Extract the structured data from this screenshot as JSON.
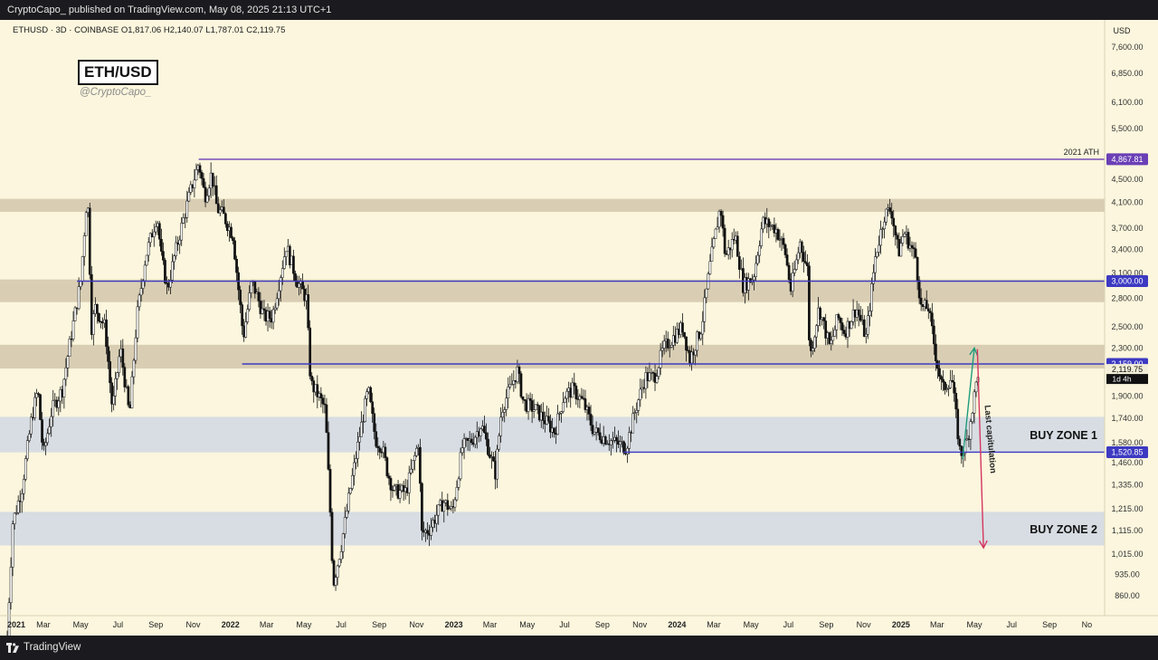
{
  "header": {
    "publisher_text": "CryptoCapo_ published on TradingView.com, May 08, 2025 21:13 UTC+1"
  },
  "footer": {
    "brand": "TradingView"
  },
  "chart_title": {
    "symbol_line": "ETHUSD · 3D · COINBASE  O1,817.06  H2,140.07  L1,787.01  C2,119.75",
    "box_label": "ETH/USD",
    "handle": "@CryptoCapo_"
  },
  "colors": {
    "background": "#fbf6dd",
    "resistance_band": "#d2c7ad",
    "buy_zone_band": "#d3dae2",
    "level_line": "#3d3ac2",
    "ath_line": "#6b3fb6",
    "up_arrow": "#1f9b7c",
    "down_arrow": "#d4365f",
    "candle": "#111111"
  },
  "chart_data": {
    "type": "candlestick",
    "symbol": "ETHUSD",
    "interval": "3D",
    "exchange": "COINBASE",
    "last_bar": {
      "open": 1817.06,
      "high": 2140.07,
      "low": 1787.01,
      "close": 2119.75
    },
    "price_axis": {
      "currency": "USD",
      "scale": "log",
      "range": [
        790,
        8400
      ],
      "ticks": [
        7600,
        6850,
        6100,
        5500,
        4900,
        4500,
        4100,
        3700,
        3400,
        3100,
        2800,
        2500,
        2300,
        1900,
        1740,
        1580,
        1460,
        1335,
        1215,
        1115,
        1015,
        935,
        860
      ],
      "tick_labels": [
        "7,600.00",
        "6,850.00",
        "6,100.00",
        "5,500.00",
        "4,900.00",
        "4,500.00",
        "4,100.00",
        "3,700.00",
        "3,400.00",
        "3,100.00",
        "2,800.00",
        "2,500.00",
        "2,300.00",
        "1,900.00",
        "1,740.00",
        "1,580.00",
        "1,460.00",
        "1,335.00",
        "1,215.00",
        "1,115.00",
        "1,015.00",
        "935.00",
        "860.00"
      ]
    },
    "time_axis": {
      "start": "2021-01-01",
      "end": "2025-11-30",
      "tick_labels": [
        "2021",
        "Mar",
        "May",
        "Jul",
        "Sep",
        "Nov",
        "2022",
        "Mar",
        "May",
        "Jul",
        "Sep",
        "Nov",
        "2023",
        "Mar",
        "May",
        "Jul",
        "Sep",
        "Nov",
        "2024",
        "Mar",
        "May",
        "Jul",
        "Sep",
        "Nov",
        "2025",
        "Mar",
        "May",
        "Jul",
        "Sep",
        "No"
      ],
      "tick_dates": [
        "2021-01-01",
        "2021-03-01",
        "2021-05-01",
        "2021-07-01",
        "2021-09-01",
        "2021-11-01",
        "2022-01-01",
        "2022-03-01",
        "2022-05-01",
        "2022-07-01",
        "2022-09-01",
        "2022-11-01",
        "2023-01-01",
        "2023-03-01",
        "2023-05-01",
        "2023-07-01",
        "2023-09-01",
        "2023-11-01",
        "2024-01-01",
        "2024-03-01",
        "2024-05-01",
        "2024-07-01",
        "2024-09-01",
        "2024-11-01",
        "2025-01-01",
        "2025-03-01",
        "2025-05-01",
        "2025-07-01",
        "2025-09-01",
        "2025-11-01"
      ],
      "bold_labels": [
        "2021",
        "2022",
        "2023",
        "2024",
        "2025"
      ]
    },
    "price_path": [
      [
        "2021-01-01",
        730
      ],
      [
        "2021-01-10",
        1150
      ],
      [
        "2021-01-25",
        1320
      ],
      [
        "2021-02-10",
        1750
      ],
      [
        "2021-02-20",
        1950
      ],
      [
        "2021-03-01",
        1500
      ],
      [
        "2021-03-15",
        1800
      ],
      [
        "2021-04-01",
        1950
      ],
      [
        "2021-04-15",
        2400
      ],
      [
        "2021-05-01",
        3000
      ],
      [
        "2021-05-12",
        4300
      ],
      [
        "2021-05-19",
        2500
      ],
      [
        "2021-05-25",
        2700
      ],
      [
        "2021-06-10",
        2500
      ],
      [
        "2021-06-22",
        1800
      ],
      [
        "2021-07-05",
        2300
      ],
      [
        "2021-07-20",
        1750
      ],
      [
        "2021-08-01",
        2600
      ],
      [
        "2021-08-15",
        3300
      ],
      [
        "2021-09-03",
        3900
      ],
      [
        "2021-09-10",
        3300
      ],
      [
        "2021-09-20",
        2900
      ],
      [
        "2021-10-01",
        3300
      ],
      [
        "2021-10-15",
        3800
      ],
      [
        "2021-10-28",
        4300
      ],
      [
        "2021-11-10",
        4800
      ],
      [
        "2021-11-20",
        4200
      ],
      [
        "2021-12-01",
        4600
      ],
      [
        "2021-12-10",
        4000
      ],
      [
        "2021-12-20",
        3900
      ],
      [
        "2022-01-05",
        3600
      ],
      [
        "2022-01-22",
        2400
      ],
      [
        "2022-02-05",
        3000
      ],
      [
        "2022-02-25",
        2600
      ],
      [
        "2022-03-10",
        2600
      ],
      [
        "2022-04-02",
        3450
      ],
      [
        "2022-04-20",
        3000
      ],
      [
        "2022-05-05",
        2800
      ],
      [
        "2022-05-12",
        2000
      ],
      [
        "2022-05-25",
        1900
      ],
      [
        "2022-06-05",
        1800
      ],
      [
        "2022-06-13",
        1200
      ],
      [
        "2022-06-18",
        900
      ],
      [
        "2022-07-01",
        1050
      ],
      [
        "2022-07-15",
        1300
      ],
      [
        "2022-08-01",
        1650
      ],
      [
        "2022-08-14",
        1950
      ],
      [
        "2022-08-26",
        1600
      ],
      [
        "2022-09-06",
        1550
      ],
      [
        "2022-09-15",
        1400
      ],
      [
        "2022-09-25",
        1300
      ],
      [
        "2022-10-15",
        1300
      ],
      [
        "2022-11-05",
        1600
      ],
      [
        "2022-11-09",
        1100
      ],
      [
        "2022-11-22",
        1120
      ],
      [
        "2022-12-15",
        1250
      ],
      [
        "2022-12-30",
        1200
      ],
      [
        "2023-01-15",
        1550
      ],
      [
        "2023-02-01",
        1600
      ],
      [
        "2023-02-15",
        1700
      ],
      [
        "2023-03-10",
        1400
      ],
      [
        "2023-03-20",
        1800
      ],
      [
        "2023-04-15",
        2100
      ],
      [
        "2023-04-25",
        1850
      ],
      [
        "2023-05-15",
        1800
      ],
      [
        "2023-06-15",
        1650
      ],
      [
        "2023-06-30",
        1900
      ],
      [
        "2023-07-15",
        1950
      ],
      [
        "2023-08-01",
        1850
      ],
      [
        "2023-08-18",
        1650
      ],
      [
        "2023-09-10",
        1600
      ],
      [
        "2023-10-10",
        1550
      ],
      [
        "2023-10-25",
        1800
      ],
      [
        "2023-11-10",
        2050
      ],
      [
        "2023-11-25",
        2050
      ],
      [
        "2023-12-10",
        2300
      ],
      [
        "2024-01-10",
        2500
      ],
      [
        "2024-01-22",
        2200
      ],
      [
        "2024-02-10",
        2500
      ],
      [
        "2024-02-25",
        3250
      ],
      [
        "2024-03-12",
        4050
      ],
      [
        "2024-03-20",
        3300
      ],
      [
        "2024-04-05",
        3600
      ],
      [
        "2024-04-18",
        2950
      ],
      [
        "2024-05-05",
        3050
      ],
      [
        "2024-05-20",
        3800
      ],
      [
        "2024-06-10",
        3700
      ],
      [
        "2024-06-25",
        3400
      ],
      [
        "2024-07-05",
        2900
      ],
      [
        "2024-07-20",
        3500
      ],
      [
        "2024-08-01",
        3150
      ],
      [
        "2024-08-05",
        2200
      ],
      [
        "2024-08-20",
        2700
      ],
      [
        "2024-09-07",
        2300
      ],
      [
        "2024-09-20",
        2600
      ],
      [
        "2024-10-01",
        2450
      ],
      [
        "2024-10-20",
        2700
      ],
      [
        "2024-11-05",
        2400
      ],
      [
        "2024-11-20",
        3300
      ],
      [
        "2024-12-05",
        3900
      ],
      [
        "2024-12-16",
        4000
      ],
      [
        "2024-12-28",
        3350
      ],
      [
        "2025-01-06",
        3650
      ],
      [
        "2025-01-25",
        3300
      ],
      [
        "2025-02-03",
        2700
      ],
      [
        "2025-02-15",
        2700
      ],
      [
        "2025-02-28",
        2200
      ],
      [
        "2025-03-10",
        1950
      ],
      [
        "2025-03-25",
        2050
      ],
      [
        "2025-04-08",
        1500
      ],
      [
        "2025-04-20",
        1600
      ],
      [
        "2025-05-08",
        2120
      ]
    ],
    "bands": [
      {
        "role": "resistance",
        "low": 3950,
        "high": 4160
      },
      {
        "role": "resistance",
        "low": 2760,
        "high": 3020
      },
      {
        "role": "resistance",
        "low": 2120,
        "high": 2330
      },
      {
        "role": "buy_zone",
        "label": "BUY ZONE 1",
        "low": 1520,
        "high": 1750
      },
      {
        "role": "buy_zone",
        "label": "BUY ZONE 2",
        "low": 1050,
        "high": 1200
      }
    ],
    "levels": [
      {
        "value": 4867.81,
        "label": "4,867.81",
        "annotation": "2021 ATH",
        "start": "2021-11-10",
        "kind": "ath"
      },
      {
        "value": 3000.0,
        "label": "3,000.00",
        "start": "2021-04-25",
        "kind": "level"
      },
      {
        "value": 2159.0,
        "label": "2,159.00",
        "start": "2022-01-20",
        "kind": "level"
      },
      {
        "value": 1520.85,
        "label": "1,520.85",
        "start": "2023-10-05",
        "kind": "level"
      }
    ],
    "current_price": {
      "value": 2119.75,
      "label": "2,119.75",
      "countdown": "1d 4h"
    },
    "arrows": [
      {
        "kind": "up",
        "from": [
          "2025-04-12",
          1480
        ],
        "to": [
          "2025-05-01",
          2300
        ]
      },
      {
        "kind": "down",
        "from": [
          "2025-05-06",
          2290
        ],
        "to": [
          "2025-05-16",
          1040
        ],
        "label": "Last capitulation"
      }
    ]
  }
}
